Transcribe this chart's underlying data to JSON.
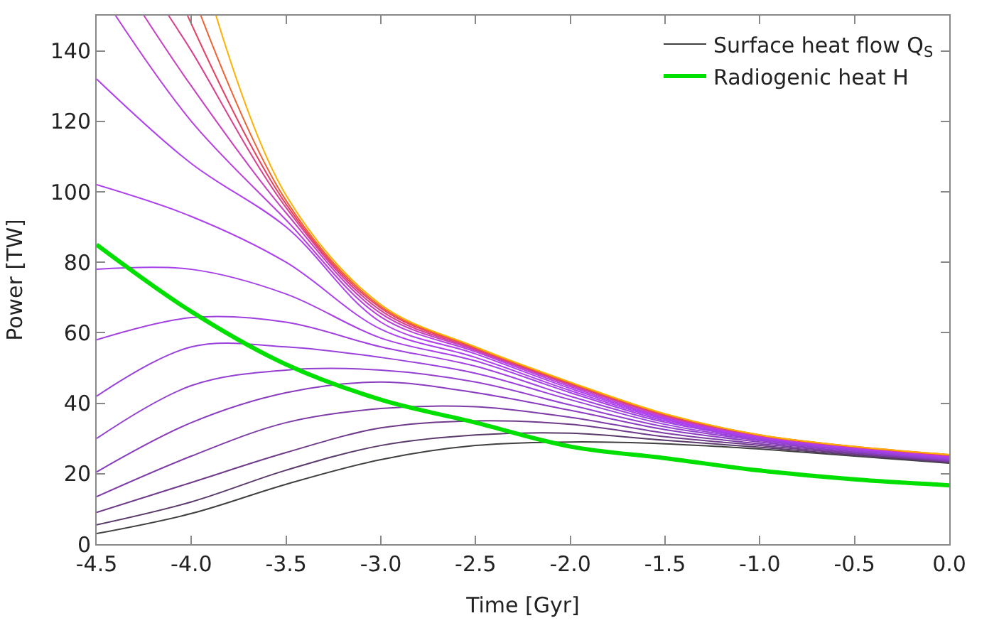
{
  "chart_data": {
    "type": "line",
    "xlabel": "Time [Gyr]",
    "ylabel": "Power [TW]",
    "xlim": [
      -4.5,
      0.0
    ],
    "ylim": [
      0,
      150
    ],
    "xticks": [
      -4.5,
      {
        "value": -4.0,
        "label": "-4.0"
      },
      -3.5,
      {
        "value": -3.0,
        "label": "-3.0"
      },
      -2.5,
      {
        "value": -2.0,
        "label": "-2.0"
      },
      -1.5,
      {
        "value": -1.0,
        "label": "-1.0"
      },
      -0.5,
      {
        "value": 0.0,
        "label": "0.0"
      }
    ],
    "yticks": [
      0,
      20,
      40,
      60,
      80,
      100,
      120,
      140
    ],
    "grid": false,
    "legend": "top right",
    "marker": "none",
    "line_style": "solid",
    "x": [
      -4.5,
      -4.0,
      -3.5,
      -3.0,
      -2.5,
      -2.0,
      -1.5,
      -1.0,
      -0.5,
      0.0
    ],
    "series": [
      {
        "name": "Surface heat flow Q$_{S}$",
        "color": "#404040",
        "values": [
          3,
          8.7,
          17,
          24,
          28,
          29,
          28.5,
          27,
          25,
          23
        ]
      },
      {
        "color": "#5a3a6a",
        "values": [
          5.5,
          12,
          21,
          28,
          31,
          31.5,
          29.5,
          27.5,
          25.3,
          23.2
        ]
      },
      {
        "color": "#6e3a8a",
        "values": [
          9,
          17.5,
          26,
          33,
          35,
          34,
          30.5,
          28,
          25.6,
          23.4
        ]
      },
      {
        "color": "#7e3ca8",
        "values": [
          13.5,
          25,
          34.5,
          38.5,
          39,
          36,
          31.5,
          28.5,
          25.9,
          23.6
        ]
      },
      {
        "color": "#8a3cc0",
        "values": [
          20.5,
          34.5,
          43,
          46,
          43,
          38,
          32.5,
          29,
          26.2,
          23.8
        ]
      },
      {
        "color": "#9440d0",
        "values": [
          30,
          45,
          49.4,
          49.4,
          46,
          39.5,
          33.3,
          29.4,
          26.5,
          24
        ]
      },
      {
        "color": "#9a40dc",
        "values": [
          42,
          56,
          56,
          53,
          48.5,
          41,
          34,
          29.7,
          26.7,
          24.2
        ]
      },
      {
        "color": "#a040e0",
        "values": [
          58,
          64.3,
          63,
          56,
          50.5,
          42,
          34.6,
          30,
          26.9,
          24.4
        ]
      },
      {
        "color": "#a640e8",
        "values": [
          78,
          78,
          71,
          58.5,
          52,
          43,
          35,
          30.2,
          27.1,
          24.6
        ]
      },
      {
        "color": "#ac40f0",
        "values": [
          102,
          93,
          80,
          61,
          53,
          43.6,
          35.4,
          30.4,
          27.2,
          24.8
        ]
      },
      {
        "color": "#b040f0",
        "values": [
          132,
          108,
          90,
          63,
          54,
          44.2,
          35.7,
          30.5,
          27.3,
          24.9
        ]
      },
      {
        "color": "#b840e0",
        "x": [
          -4.4,
          -4.0,
          -3.5,
          -3.0,
          -2.5,
          -2.0,
          -1.5,
          -1.0,
          -0.5,
          0.0
        ],
        "values": [
          150,
          120,
          92,
          64.5,
          54.6,
          44.7,
          36,
          30.6,
          27.4,
          25
        ]
      },
      {
        "color": "#c840c0",
        "x": [
          -4.25,
          -4.0,
          -3.5,
          -3.0,
          -2.5,
          -2.0,
          -1.5,
          -1.0,
          -0.5,
          0.0
        ],
        "values": [
          150,
          130,
          94,
          65.5,
          55,
          45.1,
          36.3,
          30.7,
          27.5,
          25.1
        ]
      },
      {
        "color": "#d84090",
        "x": [
          -4.12,
          -4.0,
          -3.5,
          -3.0,
          -2.5,
          -2.0,
          -1.5,
          -1.0,
          -0.5,
          0.0
        ],
        "values": [
          150,
          140,
          95.5,
          66.3,
          55.3,
          45.4,
          36.5,
          30.8,
          27.6,
          25.2
        ]
      },
      {
        "color": "#e84060",
        "x": [
          -4.02,
          -3.5,
          -3.0,
          -2.5,
          -2.0,
          -1.5,
          -1.0,
          -0.5,
          0.0
        ],
        "values": [
          150,
          96.5,
          67,
          55.6,
          45.6,
          36.7,
          30.9,
          27.6,
          25.3
        ]
      },
      {
        "color": "#f06030",
        "x": [
          -3.95,
          -3.5,
          -3.0,
          -2.5,
          -2.0,
          -1.5,
          -1.0,
          -0.5,
          0.0
        ],
        "values": [
          150,
          97.5,
          67.5,
          55.8,
          45.8,
          36.9,
          31,
          27.7,
          25.4
        ]
      },
      {
        "color": "#ffb000",
        "x": [
          -3.87,
          -3.5,
          -3.0,
          -2.5,
          -2.0,
          -1.5,
          -1.0,
          -0.5,
          0.0
        ],
        "values": [
          150,
          99,
          68,
          56,
          46,
          37,
          31,
          27.7,
          25.4
        ]
      },
      {
        "name": "Radiogenic heat H",
        "color": "#00e000",
        "values": [
          85,
          66,
          51,
          41,
          34.5,
          27.7,
          24.4,
          20.9,
          18.4,
          16.7
        ]
      }
    ]
  }
}
